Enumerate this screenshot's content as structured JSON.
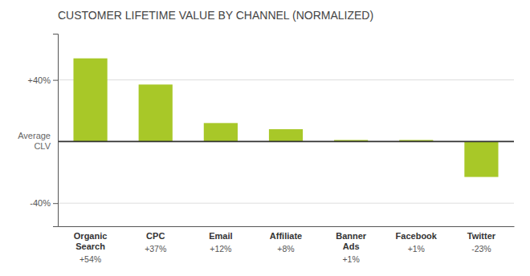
{
  "chart_data": {
    "type": "bar",
    "title": "CUSTOMER LIFETIME VALUE BY CHANNEL (NORMALIZED)",
    "categories": [
      "Organic\nSearch",
      "CPC",
      "Email",
      "Affiliate",
      "Banner\nAds",
      "Facebook",
      "Twitter"
    ],
    "values": [
      54,
      37,
      12,
      8,
      1,
      1,
      -23
    ],
    "value_labels": [
      "+54%",
      "+37%",
      "+12%",
      "+8%",
      "+1%",
      "+1%",
      "-23%"
    ],
    "data_labels": true,
    "color": "#a8c828",
    "ylim": [
      -55,
      70
    ],
    "yticks": [
      {
        "value": 40,
        "label": "+40%"
      },
      {
        "value": -40,
        "label": "-40%"
      }
    ],
    "grid": true,
    "annotations": [
      {
        "text": "Average\nCLV",
        "y": 0
      }
    ]
  }
}
